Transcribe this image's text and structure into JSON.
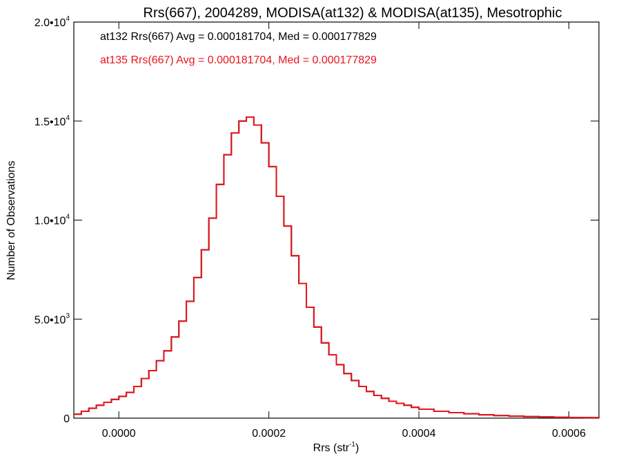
{
  "chart_data": {
    "type": "line",
    "title": "Rrs(667), 2004289, MODISA(at132) & MODISA(at135), Mesotrophic",
    "xlabel_base": "Rrs (str",
    "xlabel_sup": "-1",
    "xlabel_close": ")",
    "ylabel": "Number of Observations",
    "xlim": [
      -6e-05,
      0.00064
    ],
    "ylim": [
      0,
      20000
    ],
    "x_ticks": [
      {
        "value": 0.0,
        "label": "0.0000"
      },
      {
        "value": 0.0002,
        "label": "0.0002"
      },
      {
        "value": 0.0004,
        "label": "0.0004"
      },
      {
        "value": 0.0006,
        "label": "0.0006"
      }
    ],
    "y_ticks": [
      {
        "value": 0,
        "label": "0",
        "exp": ""
      },
      {
        "value": 5000,
        "label": "5.0•10",
        "exp": "3"
      },
      {
        "value": 10000,
        "label": "1.0•10",
        "exp": "4"
      },
      {
        "value": 15000,
        "label": "1.5•10",
        "exp": "4"
      },
      {
        "value": 20000,
        "label": "2.0•10",
        "exp": "4"
      }
    ],
    "annotations": [
      {
        "text": "at132 Rrs(667) Avg = 0.000181704, Med = 0.000177829",
        "color": "#000000"
      },
      {
        "text": "at135 Rrs(667) Avg = 0.000181704, Med = 0.000177829",
        "color": "#e8141c"
      }
    ],
    "series": [
      {
        "name": "at132",
        "color": "#000000",
        "x": [
          -6e-05,
          -5e-05,
          -4e-05,
          -3e-05,
          -2e-05,
          -1e-05,
          0.0,
          1e-05,
          2e-05,
          3e-05,
          4e-05,
          5e-05,
          6e-05,
          7e-05,
          8e-05,
          9e-05,
          0.0001,
          0.00011,
          0.00012,
          0.00013,
          0.00014,
          0.00015,
          0.00016,
          0.00017,
          0.00018,
          0.00019,
          0.0002,
          0.00021,
          0.00022,
          0.00023,
          0.00024,
          0.00025,
          0.00026,
          0.00027,
          0.00028,
          0.00029,
          0.0003,
          0.00031,
          0.00032,
          0.00033,
          0.00034,
          0.00035,
          0.00036,
          0.00037,
          0.00038,
          0.00039,
          0.0004,
          0.00042,
          0.00044,
          0.00046,
          0.00048,
          0.0005,
          0.00052,
          0.00054,
          0.00056,
          0.00058,
          0.0006,
          0.00062,
          0.00064
        ],
        "values": [
          200,
          350,
          500,
          650,
          800,
          950,
          1100,
          1300,
          1600,
          2000,
          2400,
          2900,
          3400,
          4100,
          4900,
          5900,
          7100,
          8500,
          10100,
          11800,
          13300,
          14400,
          15000,
          15200,
          14800,
          13900,
          12700,
          11200,
          9700,
          8200,
          6800,
          5600,
          4600,
          3800,
          3200,
          2700,
          2250,
          1900,
          1600,
          1350,
          1150,
          1000,
          850,
          750,
          650,
          550,
          450,
          350,
          280,
          220,
          170,
          130,
          100,
          80,
          60,
          45,
          35,
          25,
          20
        ]
      },
      {
        "name": "at135",
        "color": "#e8141c",
        "x": [
          -6e-05,
          -5e-05,
          -4e-05,
          -3e-05,
          -2e-05,
          -1e-05,
          0.0,
          1e-05,
          2e-05,
          3e-05,
          4e-05,
          5e-05,
          6e-05,
          7e-05,
          8e-05,
          9e-05,
          0.0001,
          0.00011,
          0.00012,
          0.00013,
          0.00014,
          0.00015,
          0.00016,
          0.00017,
          0.00018,
          0.00019,
          0.0002,
          0.00021,
          0.00022,
          0.00023,
          0.00024,
          0.00025,
          0.00026,
          0.00027,
          0.00028,
          0.00029,
          0.0003,
          0.00031,
          0.00032,
          0.00033,
          0.00034,
          0.00035,
          0.00036,
          0.00037,
          0.00038,
          0.00039,
          0.0004,
          0.00042,
          0.00044,
          0.00046,
          0.00048,
          0.0005,
          0.00052,
          0.00054,
          0.00056,
          0.00058,
          0.0006,
          0.00062,
          0.00064
        ],
        "values": [
          200,
          350,
          500,
          650,
          800,
          950,
          1100,
          1300,
          1600,
          2000,
          2400,
          2900,
          3400,
          4100,
          4900,
          5900,
          7100,
          8500,
          10100,
          11800,
          13300,
          14400,
          15000,
          15200,
          14800,
          13900,
          12700,
          11200,
          9700,
          8200,
          6800,
          5600,
          4600,
          3800,
          3200,
          2700,
          2250,
          1900,
          1600,
          1350,
          1150,
          1000,
          850,
          750,
          650,
          550,
          450,
          350,
          280,
          220,
          170,
          130,
          100,
          80,
          60,
          45,
          35,
          25,
          20
        ]
      }
    ]
  }
}
